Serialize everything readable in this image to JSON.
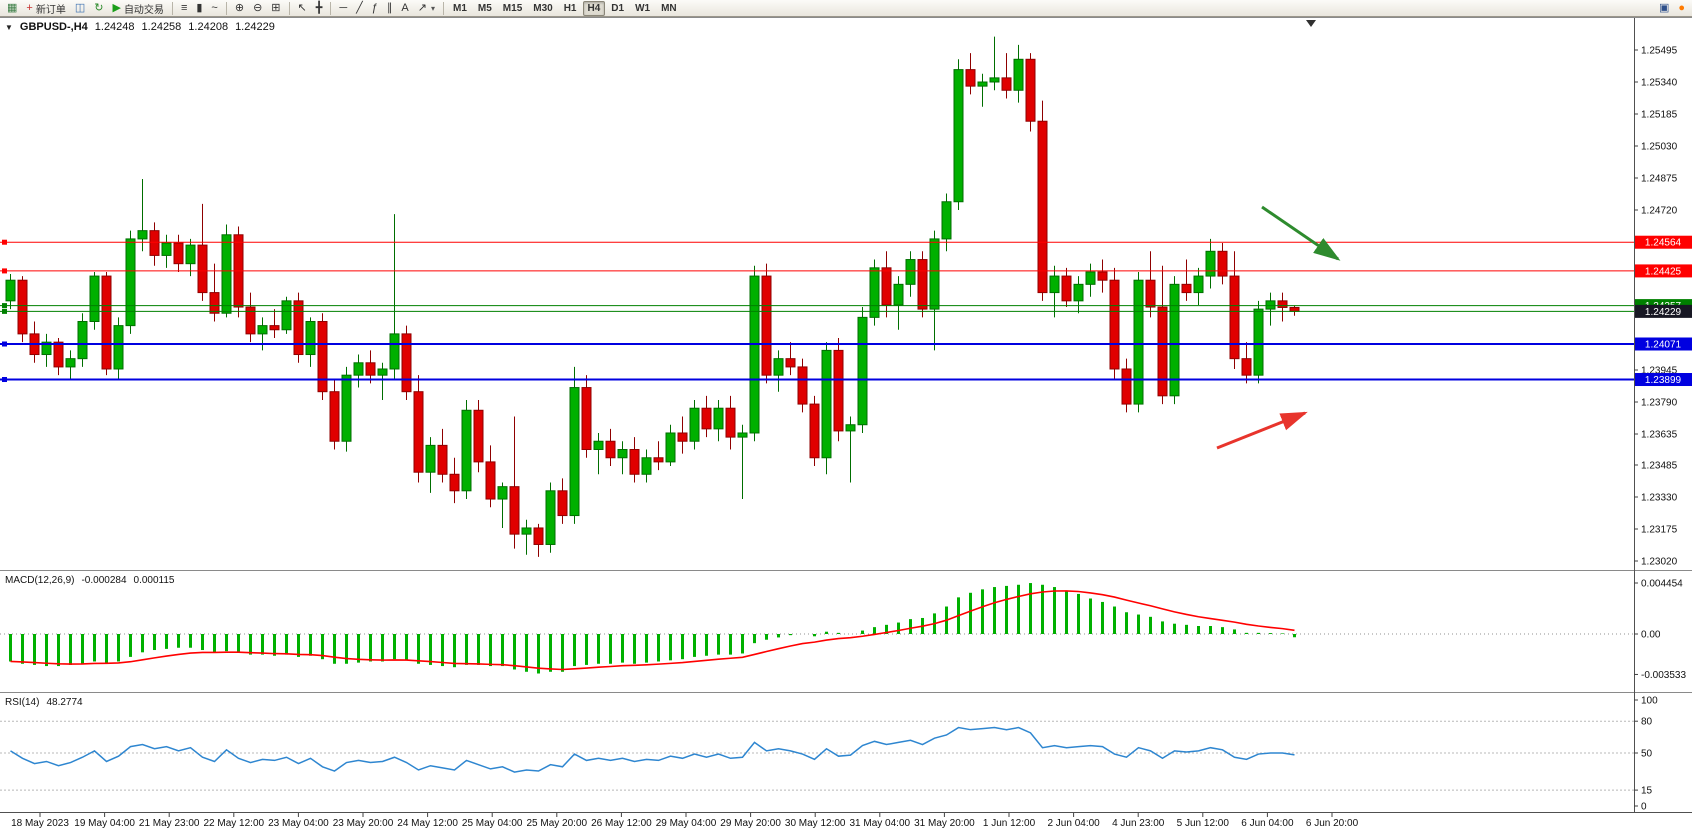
{
  "toolbar": {
    "items": [
      {
        "name": "new-chart",
        "glyph": "▦",
        "color": "#3a7d44"
      },
      {
        "name": "new-order",
        "glyph": "+",
        "color": "#c83232",
        "label": "新订单"
      },
      {
        "name": "chart-profiles",
        "glyph": "◫",
        "color": "#3b6fb0"
      },
      {
        "name": "refresh",
        "glyph": "↻",
        "color": "#2c8a2c"
      },
      {
        "name": "autotrading",
        "glyph": "▶",
        "color": "#1b9e1b",
        "label": "自动交易"
      },
      {
        "type": "sep"
      },
      {
        "name": "bars-mode",
        "glyph": "≡"
      },
      {
        "name": "candles-mode",
        "glyph": "▮"
      },
      {
        "name": "line-mode",
        "glyph": "~"
      },
      {
        "type": "sep"
      },
      {
        "name": "zoom-in",
        "glyph": "⊕"
      },
      {
        "name": "zoom-out",
        "glyph": "⊖"
      },
      {
        "name": "tile-windows",
        "glyph": "⊞"
      },
      {
        "type": "sep"
      },
      {
        "name": "cursor",
        "glyph": "↖"
      },
      {
        "name": "crosshair",
        "glyph": "╋"
      },
      {
        "type": "sep"
      },
      {
        "name": "horizontal-line-tool",
        "glyph": "─"
      },
      {
        "name": "trendline-tool",
        "glyph": "╱"
      },
      {
        "name": "fibonacci-tool",
        "glyph": "ƒ"
      },
      {
        "name": "equidistant-channel-tool",
        "glyph": "∥"
      },
      {
        "name": "text-tool",
        "glyph": "A"
      },
      {
        "name": "arrows-tool",
        "glyph": "↗",
        "dropdown": true
      },
      {
        "type": "sep"
      },
      {
        "name": "tf-m1",
        "label": "M1",
        "tf": true
      },
      {
        "name": "tf-m5",
        "label": "M5",
        "tf": true
      },
      {
        "name": "tf-m15",
        "label": "M15",
        "tf": true
      },
      {
        "name": "tf-m30",
        "label": "M30",
        "tf": true
      },
      {
        "name": "tf-h1",
        "label": "H1",
        "tf": true
      },
      {
        "name": "tf-h4",
        "label": "H4",
        "tf": true,
        "active": true
      },
      {
        "name": "tf-d1",
        "label": "D1",
        "tf": true
      },
      {
        "name": "tf-w1",
        "label": "W1",
        "tf": true
      },
      {
        "name": "tf-mn",
        "label": "MN",
        "tf": true
      },
      {
        "type": "spacer"
      },
      {
        "name": "terminal",
        "glyph": "▣",
        "color": "#2d4f8a"
      },
      {
        "name": "notification",
        "glyph": "●",
        "color": "#ff7a00"
      }
    ]
  },
  "chart_header": {
    "collapse_icon": "▼",
    "symbol": "GBPUSD-,H4",
    "open": "1.24248",
    "high": "1.24258",
    "low": "1.24208",
    "close": "1.24229"
  },
  "macd_header": {
    "name": "MACD(12,26,9)",
    "main_value": "-0.000284",
    "signal_value": "0.000115"
  },
  "rsi_header": {
    "name": "RSI(14)",
    "value": "48.2774"
  },
  "chart_data": [
    {
      "type": "candlestick",
      "symbol": "GBPUSD-",
      "timeframe": "H4",
      "ylim": [
        1.2294,
        1.2558
      ],
      "colors": {
        "up": "#00b000",
        "up_border": "#006e00",
        "down": "#e00000",
        "down_border": "#8f0000"
      },
      "y_ticks": [
        "1.25495",
        "1.25340",
        "1.25185",
        "1.25030",
        "1.24875",
        "1.24720",
        "1.23945",
        "1.23790",
        "1.23635",
        "1.23485",
        "1.23330",
        "1.23175",
        "1.23020"
      ],
      "x_labels": [
        "18 May 2023",
        "19 May 04:00",
        "21 May 23:00",
        "22 May 12:00",
        "23 May 04:00",
        "23 May 20:00",
        "24 May 12:00",
        "25 May 04:00",
        "25 May 20:00",
        "26 May 12:00",
        "29 May 04:00",
        "29 May 20:00",
        "30 May 12:00",
        "31 May 04:00",
        "31 May 20:00",
        "1 Jun 12:00",
        "2 Jun 04:00",
        "4 Jun 23:00",
        "5 Jun 12:00",
        "6 Jun 04:00",
        "6 Jun 20:00"
      ],
      "levels": [
        {
          "name": "resistance-line-1",
          "label": "1.24564",
          "price": 1.24564,
          "color": "#ff0000",
          "width": 1
        },
        {
          "name": "resistance-line-2",
          "label": "1.24425",
          "price": 1.24425,
          "color": "#ff0000",
          "width": 1
        },
        {
          "name": "pivot-line",
          "label": "1.24257",
          "price": 1.24257,
          "color": "#008000",
          "width": 1
        },
        {
          "name": "current-price-line",
          "label": "1.24229",
          "price": 1.24229,
          "color": "#008000",
          "width": 1,
          "badge_color": "#181824"
        },
        {
          "name": "support-line-1",
          "label": "1.24071",
          "price": 1.24071,
          "color": "#0000e0",
          "width": 2
        },
        {
          "name": "support-line-2",
          "label": "1.23899",
          "price": 1.23899,
          "color": "#0000e0",
          "width": 2
        }
      ],
      "arrows": [
        {
          "name": "green-down-arrow",
          "color": "#2e8b2e",
          "from": [
            1262,
            207
          ],
          "to": [
            1338,
            259
          ]
        },
        {
          "name": "red-up-arrow",
          "color": "#e8342c",
          "from": [
            1217,
            448
          ],
          "to": [
            1305,
            413
          ]
        }
      ],
      "ohlc": [
        [
          1.2428,
          1.2441,
          1.2424,
          1.2438
        ],
        [
          1.2438,
          1.244,
          1.2408,
          1.2412
        ],
        [
          1.2412,
          1.2418,
          1.2398,
          1.2402
        ],
        [
          1.2402,
          1.2412,
          1.2396,
          1.2408
        ],
        [
          1.2408,
          1.241,
          1.2392,
          1.2396
        ],
        [
          1.2396,
          1.2404,
          1.239,
          1.24
        ],
        [
          1.24,
          1.2422,
          1.2396,
          1.2418
        ],
        [
          1.2418,
          1.2442,
          1.2414,
          1.244
        ],
        [
          1.244,
          1.2442,
          1.2392,
          1.2395
        ],
        [
          1.2395,
          1.242,
          1.239,
          1.2416
        ],
        [
          1.2416,
          1.2462,
          1.2412,
          1.2458
        ],
        [
          1.2458,
          1.2487,
          1.2452,
          1.2462
        ],
        [
          1.2462,
          1.2466,
          1.2445,
          1.245
        ],
        [
          1.245,
          1.246,
          1.2444,
          1.2456
        ],
        [
          1.2456,
          1.246,
          1.2442,
          1.2446
        ],
        [
          1.2446,
          1.2458,
          1.244,
          1.2455
        ],
        [
          1.2455,
          1.2475,
          1.2428,
          1.2432
        ],
        [
          1.2432,
          1.2446,
          1.2418,
          1.2422
        ],
        [
          1.2422,
          1.2465,
          1.242,
          1.246
        ],
        [
          1.246,
          1.2464,
          1.242,
          1.2425
        ],
        [
          1.2425,
          1.2432,
          1.2408,
          1.2412
        ],
        [
          1.2412,
          1.242,
          1.2404,
          1.2416
        ],
        [
          1.2416,
          1.2424,
          1.241,
          1.2414
        ],
        [
          1.2414,
          1.243,
          1.2412,
          1.2428
        ],
        [
          1.2428,
          1.2432,
          1.2398,
          1.2402
        ],
        [
          1.2402,
          1.242,
          1.2396,
          1.2418
        ],
        [
          1.2418,
          1.2422,
          1.238,
          1.2384
        ],
        [
          1.2384,
          1.239,
          1.2356,
          1.236
        ],
        [
          1.236,
          1.2396,
          1.2355,
          1.2392
        ],
        [
          1.2392,
          1.2402,
          1.2386,
          1.2398
        ],
        [
          1.2398,
          1.2404,
          1.2388,
          1.2392
        ],
        [
          1.2392,
          1.2398,
          1.238,
          1.2395
        ],
        [
          1.2395,
          1.247,
          1.239,
          1.2412
        ],
        [
          1.2412,
          1.2416,
          1.238,
          1.2384
        ],
        [
          1.2384,
          1.2392,
          1.234,
          1.2345
        ],
        [
          1.2345,
          1.2362,
          1.2335,
          1.2358
        ],
        [
          1.2358,
          1.2366,
          1.234,
          1.2344
        ],
        [
          1.2344,
          1.2352,
          1.233,
          1.2336
        ],
        [
          1.2336,
          1.238,
          1.2332,
          1.2375
        ],
        [
          1.2375,
          1.238,
          1.2345,
          1.235
        ],
        [
          1.235,
          1.2358,
          1.2328,
          1.2332
        ],
        [
          1.2332,
          1.234,
          1.2318,
          1.2338
        ],
        [
          1.2338,
          1.2372,
          1.2308,
          1.2315
        ],
        [
          1.2315,
          1.2322,
          1.2305,
          1.2318
        ],
        [
          1.2318,
          1.232,
          1.2304,
          1.231
        ],
        [
          1.231,
          1.234,
          1.2306,
          1.2336
        ],
        [
          1.2336,
          1.2342,
          1.232,
          1.2324
        ],
        [
          1.2324,
          1.2396,
          1.232,
          1.2386
        ],
        [
          1.2386,
          1.2392,
          1.2352,
          1.2356
        ],
        [
          1.2356,
          1.2364,
          1.2344,
          1.236
        ],
        [
          1.236,
          1.2366,
          1.2348,
          1.2352
        ],
        [
          1.2352,
          1.236,
          1.2344,
          1.2356
        ],
        [
          1.2356,
          1.2362,
          1.234,
          1.2344
        ],
        [
          1.2344,
          1.2356,
          1.234,
          1.2352
        ],
        [
          1.2352,
          1.236,
          1.2346,
          1.235
        ],
        [
          1.235,
          1.2368,
          1.2348,
          1.2364
        ],
        [
          1.2364,
          1.2372,
          1.2354,
          1.236
        ],
        [
          1.236,
          1.238,
          1.2356,
          1.2376
        ],
        [
          1.2376,
          1.2382,
          1.2362,
          1.2366
        ],
        [
          1.2366,
          1.238,
          1.236,
          1.2376
        ],
        [
          1.2376,
          1.2382,
          1.2356,
          1.2362
        ],
        [
          1.2362,
          1.2368,
          1.2332,
          1.2364
        ],
        [
          1.2364,
          1.2445,
          1.236,
          1.244
        ],
        [
          1.244,
          1.2446,
          1.2388,
          1.2392
        ],
        [
          1.2392,
          1.2404,
          1.2384,
          1.24
        ],
        [
          1.24,
          1.2408,
          1.2392,
          1.2396
        ],
        [
          1.2396,
          1.24,
          1.2374,
          1.2378
        ],
        [
          1.2378,
          1.2382,
          1.2348,
          1.2352
        ],
        [
          1.2352,
          1.2408,
          1.2344,
          1.2404
        ],
        [
          1.2404,
          1.241,
          1.236,
          1.2365
        ],
        [
          1.2365,
          1.2372,
          1.234,
          1.2368
        ],
        [
          1.2368,
          1.2425,
          1.2364,
          1.242
        ],
        [
          1.242,
          1.2448,
          1.2416,
          1.2444
        ],
        [
          1.2444,
          1.2452,
          1.242,
          1.2426
        ],
        [
          1.2426,
          1.244,
          1.2414,
          1.2436
        ],
        [
          1.2436,
          1.2452,
          1.243,
          1.2448
        ],
        [
          1.2448,
          1.2452,
          1.242,
          1.2424
        ],
        [
          1.2424,
          1.2462,
          1.2404,
          1.2458
        ],
        [
          1.2458,
          1.248,
          1.2452,
          1.2476
        ],
        [
          1.2476,
          1.2545,
          1.2472,
          1.254
        ],
        [
          1.254,
          1.2548,
          1.2528,
          1.2532
        ],
        [
          1.2532,
          1.2538,
          1.2522,
          1.2534
        ],
        [
          1.2534,
          1.2556,
          1.253,
          1.2536
        ],
        [
          1.2536,
          1.2548,
          1.2526,
          1.253
        ],
        [
          1.253,
          1.2552,
          1.2524,
          1.2545
        ],
        [
          1.2545,
          1.2548,
          1.251,
          1.2515
        ],
        [
          1.2515,
          1.2525,
          1.2428,
          1.2432
        ],
        [
          1.2432,
          1.2445,
          1.242,
          1.244
        ],
        [
          1.244,
          1.2444,
          1.2425,
          1.2428
        ],
        [
          1.2428,
          1.244,
          1.2422,
          1.2436
        ],
        [
          1.2436,
          1.2446,
          1.243,
          1.2442
        ],
        [
          1.2442,
          1.2448,
          1.2432,
          1.2438
        ],
        [
          1.2438,
          1.2444,
          1.239,
          1.2395
        ],
        [
          1.2395,
          1.24,
          1.2374,
          1.2378
        ],
        [
          1.2378,
          1.2442,
          1.2374,
          1.2438
        ],
        [
          1.2438,
          1.2452,
          1.242,
          1.2425
        ],
        [
          1.2425,
          1.2445,
          1.2378,
          1.2382
        ],
        [
          1.2382,
          1.244,
          1.2378,
          1.2436
        ],
        [
          1.2436,
          1.2448,
          1.2428,
          1.2432
        ],
        [
          1.2432,
          1.2444,
          1.2426,
          1.244
        ],
        [
          1.244,
          1.2458,
          1.2434,
          1.2452
        ],
        [
          1.2452,
          1.2456,
          1.2436,
          1.244
        ],
        [
          1.244,
          1.2452,
          1.2395,
          1.24
        ],
        [
          1.24,
          1.2408,
          1.2388,
          1.2392
        ],
        [
          1.2392,
          1.2428,
          1.2388,
          1.2424
        ],
        [
          1.2424,
          1.2432,
          1.2416,
          1.2428
        ],
        [
          1.2428,
          1.2432,
          1.2418,
          1.24248
        ],
        [
          1.24248,
          1.24258,
          1.24208,
          1.24229
        ]
      ]
    },
    {
      "type": "bar",
      "name": "MACD(12,26,9)",
      "current_main": "-0.000284",
      "current_signal": "0.000115",
      "signal_period": 9,
      "y_ticks": [
        "0.004454",
        "0.00",
        "-0.003533"
      ],
      "colors": {
        "histogram": "#00b000",
        "signal": "#ff0000"
      },
      "values": [
        -0.0024,
        -0.0026,
        -0.0027,
        -0.0028,
        -0.0028,
        -0.0027,
        -0.0026,
        -0.0024,
        -0.0025,
        -0.0024,
        -0.002,
        -0.0016,
        -0.0014,
        -0.0013,
        -0.0012,
        -0.0012,
        -0.0014,
        -0.0016,
        -0.0015,
        -0.0016,
        -0.0018,
        -0.0018,
        -0.0019,
        -0.0018,
        -0.002,
        -0.0019,
        -0.0022,
        -0.0026,
        -0.0026,
        -0.0025,
        -0.0024,
        -0.0024,
        -0.0022,
        -0.0023,
        -0.0026,
        -0.0027,
        -0.0028,
        -0.0029,
        -0.0027,
        -0.0027,
        -0.0028,
        -0.0028,
        -0.0031,
        -0.0033,
        -0.00345,
        -0.0033,
        -0.0033,
        -0.0028,
        -0.0027,
        -0.0026,
        -0.0026,
        -0.0025,
        -0.0026,
        -0.0025,
        -0.0024,
        -0.0023,
        -0.0022,
        -0.002,
        -0.0019,
        -0.0018,
        -0.0018,
        -0.0017,
        -0.0008,
        -0.0005,
        -0.0003,
        -0.0001,
        0.0,
        -0.0002,
        0.0002,
        0.0001,
        0.0,
        0.0003,
        0.0006,
        0.0008,
        0.001,
        0.0013,
        0.0014,
        0.0018,
        0.0024,
        0.0032,
        0.0036,
        0.0039,
        0.0041,
        0.0042,
        0.0043,
        0.00445,
        0.0043,
        0.0041,
        0.0038,
        0.0035,
        0.0031,
        0.0028,
        0.0024,
        0.0019,
        0.0017,
        0.0015,
        0.0011,
        0.0009,
        0.0008,
        0.0007,
        0.0007,
        0.0006,
        0.0004,
        0.0001,
        0.0001,
        8e-05,
        5e-05,
        -0.000284
      ]
    },
    {
      "type": "line",
      "name": "RSI(14)",
      "current": "48.2774",
      "ylim": [
        0,
        100
      ],
      "levels": [
        80,
        50,
        15
      ],
      "y_ticks": [
        "100",
        "80",
        "50",
        "15",
        "0"
      ],
      "color": "#2e86d0",
      "values": [
        52,
        45,
        40,
        42,
        38,
        41,
        46,
        52,
        42,
        47,
        56,
        58,
        54,
        56,
        52,
        55,
        46,
        42,
        53,
        45,
        41,
        44,
        43,
        46,
        40,
        45,
        37,
        33,
        41,
        43,
        41,
        42,
        46,
        41,
        34,
        38,
        36,
        34,
        43,
        39,
        35,
        37,
        32,
        34,
        33,
        39,
        37,
        49,
        43,
        45,
        43,
        45,
        42,
        44,
        43,
        47,
        45,
        49,
        46,
        49,
        45,
        46,
        60,
        52,
        54,
        52,
        49,
        44,
        54,
        47,
        48,
        57,
        61,
        58,
        60,
        62,
        58,
        64,
        67,
        74,
        72,
        73,
        74,
        72,
        74,
        69,
        55,
        57,
        55,
        56,
        57,
        56,
        49,
        46,
        55,
        52,
        45,
        52,
        51,
        52,
        55,
        53,
        46,
        44,
        49,
        50,
        50,
        48.2774
      ]
    }
  ]
}
